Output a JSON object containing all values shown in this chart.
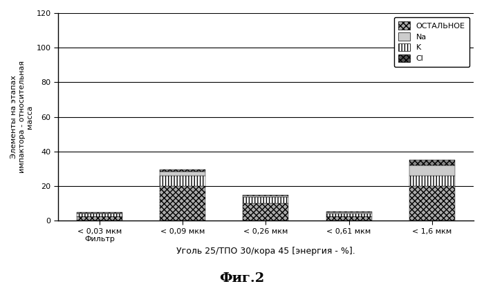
{
  "categories": [
    "< 0,03 мкм\nФильтр",
    "< 0,09 мкм",
    "< 0,26 мкм",
    "< 0,61 мкм",
    "< 1,6 мкм"
  ],
  "series_order_bottom_to_top": [
    "ОСТАЛЬНОЕ",
    "K",
    "Na",
    "Cl"
  ],
  "series": {
    "ОСТАЛЬНОЕ": [
      2.5,
      20.0,
      10.0,
      2.5,
      20.0
    ],
    "K": [
      1.5,
      6.0,
      3.5,
      1.5,
      6.0
    ],
    "Na": [
      0.5,
      2.5,
      1.0,
      0.8,
      6.0
    ],
    "Cl": [
      0.5,
      1.0,
      0.5,
      0.5,
      3.0
    ]
  },
  "ylim": [
    0,
    120
  ],
  "yticks": [
    0,
    20,
    40,
    60,
    80,
    100,
    120
  ],
  "ylabel": "Элементы на этапах\nимпактора - относительная\nмасса",
  "xlabel": "Уголь 25/ТПО 30/кора 45 [энергия - %].",
  "fig_title": "Фиг.2",
  "legend_order": [
    "ОСТАЛЬНОЕ",
    "Na",
    "K",
    "Cl"
  ],
  "bar_width": 0.55,
  "background_color": "#ffffff"
}
